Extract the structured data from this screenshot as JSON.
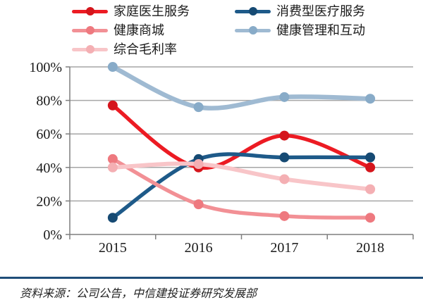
{
  "chart_data": {
    "type": "line",
    "title": "",
    "x_categories": [
      "2015",
      "2016",
      "2017",
      "2018"
    ],
    "y_ticks": [
      "0%",
      "20%",
      "40%",
      "60%",
      "80%",
      "100%"
    ],
    "y_tick_values": [
      0,
      20,
      40,
      60,
      80,
      100
    ],
    "y_axis_range": [
      0,
      100
    ],
    "unit": "percent",
    "grid": true,
    "legend_position": "top, two columns",
    "line_style": "smoothed with round markers",
    "series": [
      {
        "name": "家庭医生服务",
        "color": "#ec1b23",
        "marker_color": "#d5151c",
        "values": [
          77,
          40,
          59,
          40
        ]
      },
      {
        "name": "消费型医疗服务",
        "color": "#1e5a89",
        "marker_color": "#164a73",
        "values": [
          10,
          45,
          46,
          46
        ]
      },
      {
        "name": "健康商城",
        "color": "#f29095",
        "marker_color": "#ee797f",
        "values": [
          45,
          18,
          11,
          10
        ]
      },
      {
        "name": "健康管理和互动",
        "color": "#9fbad2",
        "marker_color": "#88abc8",
        "values": [
          100,
          76,
          82,
          81
        ]
      },
      {
        "name": "综合毛利率",
        "color": "#f8c5c8",
        "marker_color": "#f4afb3",
        "values": [
          40,
          42,
          33,
          27
        ]
      }
    ]
  },
  "footer": {
    "source_text": "资料来源：公司公告，中信建投证券研究发展部"
  },
  "style": {
    "separator_color": "#1f4e79",
    "gridline_color": "#a6a6a6",
    "axis_color": "#7f7f7f",
    "tick_label_color": "#1a1a1a"
  }
}
